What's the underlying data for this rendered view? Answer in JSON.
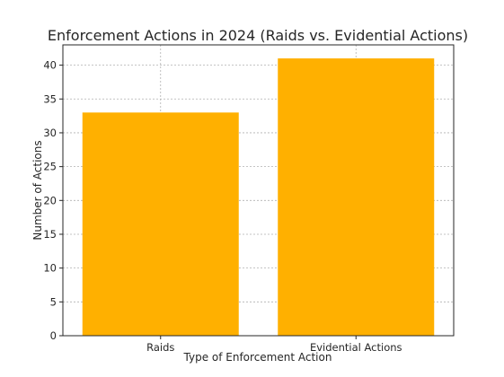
{
  "chart_data": {
    "type": "bar",
    "title": "Enforcement Actions in 2024 (Raids vs. Evidential Actions)",
    "xlabel": "Type of Enforcement Action",
    "ylabel": "Number of Actions",
    "categories": [
      "Raids",
      "Evidential Actions"
    ],
    "values": [
      33,
      41
    ],
    "ylim": [
      0,
      43
    ],
    "yticks": [
      0,
      5,
      10,
      15,
      20,
      25,
      30,
      35,
      40
    ],
    "bar_color": "#FFB000",
    "grid": true
  }
}
